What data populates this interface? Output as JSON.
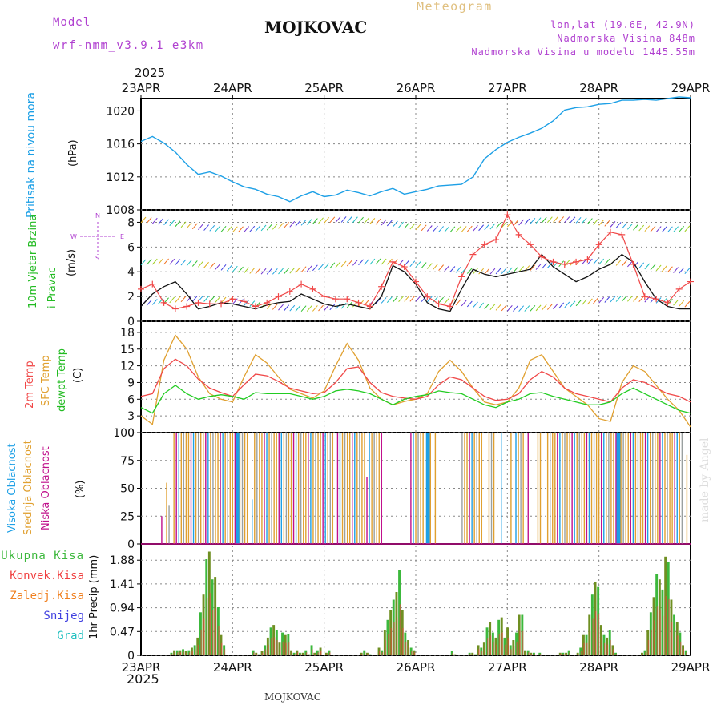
{
  "header": {
    "model_label": "Model",
    "model_name": "wrf-nmm_v3.9.1 e3km",
    "station": "MOJKOVAC",
    "meteogram_label": "Meteogram",
    "lonlat": "lon,lat (19.6E, 42.9N)",
    "elevation": "Nadmorska Visina 848m",
    "model_elevation": "Nadmorska Visina u modelu 1445.55m",
    "year_top": "2025",
    "year_bottom": "2025",
    "footer_station": "MOJKOVAC",
    "credit": "made by Angel"
  },
  "colors": {
    "pressure": "#1ea0e6",
    "wind_label": "#22bb22",
    "t2m": "#f04848",
    "sfc": "#e0a030",
    "dewpt": "#22cc22",
    "high_cloud": "#1ea0e6",
    "mid_cloud": "#e0a030",
    "low_cloud": "#c0108c",
    "total_precip": "#3cb83c",
    "conv_precip": "#f04040",
    "frozen_precip": "#f08020",
    "snow": "#4040e0",
    "hail": "#20c0c0",
    "header_purple": "#b040d0",
    "header_gold": "#e0c080"
  },
  "chart_data": [
    {
      "type": "line",
      "title": "Pritisak na nivou mora",
      "ylabel": "(hPa)",
      "x_ticks": [
        "23APR",
        "24APR",
        "25APR",
        "26APR",
        "27APR",
        "28APR",
        "29APR"
      ],
      "yticks": [
        "1008",
        "1012",
        "1016",
        "1020"
      ],
      "ylim": [
        1008,
        1021.5
      ],
      "x_hours": [
        0,
        3,
        6,
        9,
        12,
        15,
        18,
        21,
        24,
        27,
        30,
        33,
        36,
        39,
        42,
        45,
        48,
        51,
        54,
        57,
        60,
        63,
        66,
        69,
        72,
        75,
        78,
        81,
        84,
        87,
        90,
        93,
        96,
        99,
        102,
        105,
        108,
        111,
        114,
        117,
        120,
        123,
        126,
        129,
        132,
        135,
        138,
        141,
        144
      ],
      "values": [
        1016.3,
        1016.9,
        1016.1,
        1015.0,
        1013.5,
        1012.3,
        1012.6,
        1012.1,
        1011.4,
        1010.8,
        1010.5,
        1009.9,
        1009.6,
        1009.0,
        1009.7,
        1010.2,
        1009.6,
        1009.8,
        1010.4,
        1010.1,
        1009.7,
        1010.2,
        1010.6,
        1009.9,
        1010.2,
        1010.5,
        1010.9,
        1011.0,
        1011.1,
        1012.0,
        1014.2,
        1015.3,
        1016.2,
        1016.8,
        1017.3,
        1017.9,
        1018.8,
        1020.1,
        1020.4,
        1020.5,
        1020.8,
        1020.9,
        1021.3,
        1021.3,
        1021.4,
        1021.3,
        1021.5,
        1021.7,
        1021.6
      ]
    },
    {
      "type": "line",
      "title": "10m Vjetar Brzina i Pravac",
      "ylabel": "(m/s)",
      "direction_legend": [
        "W",
        "E",
        "N",
        "S"
      ],
      "yticks": [
        "0",
        "2",
        "4",
        "6",
        "8"
      ],
      "ylim": [
        0,
        9
      ],
      "x_hours": [
        0,
        3,
        6,
        9,
        12,
        15,
        18,
        21,
        24,
        27,
        30,
        33,
        36,
        39,
        42,
        45,
        48,
        51,
        54,
        57,
        60,
        63,
        66,
        69,
        72,
        75,
        78,
        81,
        84,
        87,
        90,
        93,
        96,
        99,
        102,
        105,
        108,
        111,
        114,
        117,
        120,
        123,
        126,
        129,
        132,
        135,
        138,
        141,
        144
      ],
      "speed_values": [
        1.2,
        2.2,
        2.8,
        3.2,
        2.2,
        1.0,
        1.2,
        1.5,
        1.4,
        1.2,
        1.0,
        1.3,
        1.5,
        1.6,
        2.2,
        1.8,
        1.4,
        1.2,
        1.4,
        1.2,
        1.0,
        2.0,
        4.5,
        4.0,
        3.0,
        1.5,
        1.0,
        0.8,
        2.6,
        4.2,
        3.8,
        3.6,
        3.8,
        4.0,
        4.2,
        5.4,
        4.4,
        3.8,
        3.2,
        3.6,
        4.2,
        4.6,
        5.4,
        4.8,
        3.2,
        1.8,
        1.2,
        1.0,
        1.0
      ],
      "gust_values": [
        2.6,
        3.0,
        1.5,
        1.0,
        1.2,
        1.5,
        1.4,
        1.4,
        1.8,
        1.6,
        1.2,
        1.5,
        2.0,
        2.4,
        3.0,
        2.6,
        2.0,
        1.8,
        1.8,
        1.5,
        1.2,
        2.8,
        4.8,
        4.4,
        3.2,
        2.0,
        1.4,
        1.2,
        3.6,
        5.4,
        6.2,
        6.6,
        8.6,
        7.0,
        6.2,
        5.2,
        4.8,
        4.6,
        4.8,
        5.0,
        6.2,
        7.2,
        7.0,
        4.6,
        2.0,
        1.8,
        1.5,
        2.6,
        3.2
      ]
    },
    {
      "type": "line",
      "title": "2m Temp / SFC Temp / dewpt Temp",
      "ylabel": "(C)",
      "series_names": [
        "2m Temp",
        "SFC Temp",
        "dewpt Temp"
      ],
      "yticks": [
        "0",
        "3",
        "6",
        "9",
        "12",
        "15",
        "18"
      ],
      "ylim": [
        0,
        20
      ],
      "x_hours": [
        0,
        3,
        6,
        9,
        12,
        15,
        18,
        21,
        24,
        27,
        30,
        33,
        36,
        39,
        42,
        45,
        48,
        51,
        54,
        57,
        60,
        63,
        66,
        69,
        72,
        75,
        78,
        81,
        84,
        87,
        90,
        93,
        96,
        99,
        102,
        105,
        108,
        111,
        114,
        117,
        120,
        123,
        126,
        129,
        132,
        135,
        138,
        141,
        144
      ],
      "t2m": [
        6.5,
        7.0,
        11.5,
        13.2,
        12.0,
        9.6,
        8.0,
        7.2,
        6.5,
        8.6,
        10.5,
        10.2,
        9.2,
        8.0,
        7.5,
        7.0,
        7.2,
        9.0,
        11.5,
        11.8,
        9.0,
        7.2,
        6.5,
        6.2,
        6.0,
        6.5,
        8.6,
        10.0,
        9.5,
        8.0,
        6.5,
        5.8,
        6.0,
        7.0,
        9.5,
        11.0,
        10.0,
        8.0,
        7.0,
        6.5,
        6.0,
        5.5,
        8.0,
        9.5,
        9.0,
        8.0,
        7.0,
        6.5,
        5.5
      ],
      "sfc": [
        3.0,
        1.5,
        13.0,
        17.5,
        15.0,
        10.0,
        7.0,
        6.0,
        5.5,
        10.0,
        14.0,
        12.5,
        10.0,
        7.8,
        7.0,
        6.2,
        7.5,
        12.0,
        16.0,
        13.0,
        8.0,
        6.0,
        5.0,
        5.6,
        6.0,
        7.0,
        11.0,
        13.0,
        11.0,
        8.0,
        5.5,
        5.0,
        5.5,
        8.0,
        13.0,
        14.0,
        11.0,
        8.0,
        6.5,
        5.0,
        2.5,
        2.0,
        9.0,
        12.0,
        11.0,
        8.5,
        6.0,
        4.0,
        1.0
      ],
      "dewpt": [
        4.5,
        3.5,
        7.0,
        8.5,
        7.0,
        6.0,
        6.5,
        6.8,
        6.5,
        6.0,
        7.2,
        7.0,
        7.0,
        7.0,
        6.5,
        6.0,
        6.5,
        7.5,
        7.8,
        7.5,
        7.0,
        6.0,
        5.0,
        6.0,
        6.5,
        6.8,
        7.5,
        7.2,
        7.0,
        6.0,
        5.0,
        4.5,
        5.5,
        6.0,
        7.0,
        7.2,
        6.5,
        6.0,
        5.5,
        5.0,
        5.0,
        5.5,
        7.0,
        8.0,
        7.0,
        6.0,
        5.0,
        4.0,
        3.5
      ]
    },
    {
      "type": "bar",
      "title": "Visoka / Srednja / Niska Oblacnost",
      "ylabel": "(%)",
      "series_names": [
        "Visoka Oblacnost",
        "Srednja Oblacnost",
        "Niska Oblacnost"
      ],
      "yticks": [
        "0",
        "25",
        "50",
        "75",
        "100"
      ],
      "ylim": [
        0,
        100
      ],
      "cloud_values": [
        0,
        0,
        0,
        0,
        0,
        0,
        0,
        0,
        25,
        0,
        55,
        35,
        0,
        100,
        100,
        100,
        100,
        100,
        100,
        100,
        100,
        100,
        100,
        100,
        100,
        100,
        100,
        100,
        100,
        100,
        100,
        100,
        100,
        100,
        100,
        100,
        100,
        100,
        100,
        100,
        100,
        100,
        100,
        100,
        0,
        40,
        100,
        100,
        100,
        100,
        100,
        100,
        100,
        100,
        100,
        100,
        100,
        100,
        100,
        100,
        100,
        100,
        100,
        100,
        100,
        100,
        100,
        100,
        100,
        100,
        100,
        100,
        100,
        100,
        100,
        100,
        100,
        100,
        100,
        0,
        100,
        100,
        100,
        100,
        100,
        100,
        100,
        100,
        100,
        100,
        100,
        100,
        60,
        100,
        100,
        100,
        100,
        100,
        100,
        0,
        0,
        0,
        0,
        0,
        0,
        0,
        0,
        0,
        0,
        0,
        100,
        100,
        100,
        100,
        100,
        100,
        0,
        100,
        100,
        0,
        100,
        0,
        0,
        0,
        0,
        0,
        0,
        0,
        0,
        0,
        0,
        100,
        100,
        100,
        100,
        100,
        100,
        100,
        100,
        100,
        0,
        0,
        100,
        100,
        100,
        0,
        0,
        100,
        0,
        0,
        0,
        100,
        0,
        100,
        100,
        100,
        100,
        0,
        100,
        0,
        0,
        0,
        100,
        100,
        0,
        0,
        100,
        100,
        100,
        100,
        100,
        100,
        100,
        100,
        100,
        100,
        100,
        100,
        100,
        100,
        100,
        100,
        100,
        100,
        100,
        100,
        100,
        100,
        100,
        100,
        100,
        100,
        100,
        100,
        100,
        100,
        100,
        100,
        100,
        100,
        100,
        100,
        100,
        100,
        100,
        100,
        100,
        100,
        100,
        100,
        100,
        100,
        100,
        100,
        100,
        100,
        100,
        100,
        100,
        100,
        100,
        100,
        0,
        80,
        0
      ]
    },
    {
      "type": "bar",
      "title": "1hr Precip",
      "ylabel": "1hr Precip (mm)",
      "series_names": [
        "Ukupna Kisa",
        "Konvek.Kisa",
        "Zaledj.Kisa",
        "Snijeg",
        "Grad"
      ],
      "yticks": [
        "0",
        "0.47",
        "0.94",
        "1.41",
        "1.88"
      ],
      "ylim": [
        0,
        2.2
      ],
      "x_ticks": [
        "23APR",
        "24APR",
        "25APR",
        "26APR",
        "27APR",
        "28APR",
        "29APR"
      ],
      "precip_values": [
        0,
        0,
        0,
        0,
        0,
        0,
        0,
        0,
        0,
        0,
        0.05,
        0.1,
        0.1,
        0.1,
        0.12,
        0.08,
        0.1,
        0.15,
        0.2,
        0.35,
        0.85,
        1.2,
        1.9,
        2.05,
        1.5,
        1.55,
        0.95,
        0.4,
        0.2,
        0,
        0,
        0,
        0,
        0,
        0,
        0,
        0,
        0,
        0.1,
        0.05,
        0.02,
        0.08,
        0.2,
        0.35,
        0.55,
        0.6,
        0.5,
        0.25,
        0.45,
        0.4,
        0.42,
        0.1,
        0.05,
        0.1,
        0.05,
        0.05,
        0.1,
        0.02,
        0.2,
        0.05,
        0.1,
        0.15,
        0,
        0.05,
        0.1,
        0,
        0,
        0,
        0,
        0,
        0,
        0,
        0,
        0,
        0,
        0.05,
        0.1,
        0.05,
        0.02,
        0,
        0,
        0.15,
        0.1,
        0.5,
        0.7,
        0.9,
        1.1,
        1.25,
        1.68,
        0.9,
        0.45,
        0.3,
        0.15,
        0.1,
        0,
        0,
        0,
        0,
        0,
        0,
        0,
        0,
        0,
        0,
        0,
        0,
        0.08,
        0.02,
        0,
        0,
        0,
        0,
        0.05,
        0.05,
        0.02,
        0.2,
        0.15,
        0.25,
        0.55,
        0.65,
        0.45,
        0.35,
        0.7,
        0.75,
        0.35,
        0.55,
        0.2,
        0.3,
        0.45,
        0.8,
        0.8,
        0.1,
        0.1,
        0.05,
        0.05,
        0,
        0.05,
        0,
        0,
        0,
        0,
        0,
        0,
        0.05,
        0.05,
        0.05,
        0.1,
        0,
        0,
        0.05,
        0.15,
        0.4,
        0.4,
        0.8,
        1.2,
        1.45,
        1.35,
        0.6,
        0.4,
        0.35,
        0.5,
        0.2,
        0.05,
        0,
        0,
        0,
        0,
        0,
        0,
        0,
        0,
        0.05,
        0.1,
        0.5,
        0.85,
        1.15,
        1.6,
        1.5,
        1.3,
        1.95,
        1.85,
        1.1,
        0.8,
        0.65,
        0.45,
        0.2,
        0.1,
        0
      ]
    }
  ]
}
